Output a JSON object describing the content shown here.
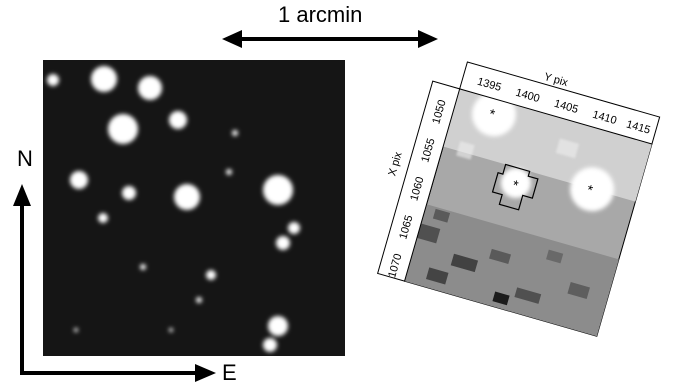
{
  "scale_bar": {
    "label": "1 arcmin"
  },
  "compass": {
    "north": "N",
    "east": "E"
  },
  "pixel_cutout": {
    "x_axis_label": "Y pix",
    "y_axis_label": "X pix",
    "x_ticks": [
      "1395",
      "1400",
      "1405",
      "1410",
      "1415"
    ],
    "y_ticks": [
      "1050",
      "1055",
      "1060",
      "1065",
      "1070"
    ]
  },
  "colors": {
    "sky_background": "#111111",
    "star": "#ffffff",
    "annotation": "#000000"
  }
}
